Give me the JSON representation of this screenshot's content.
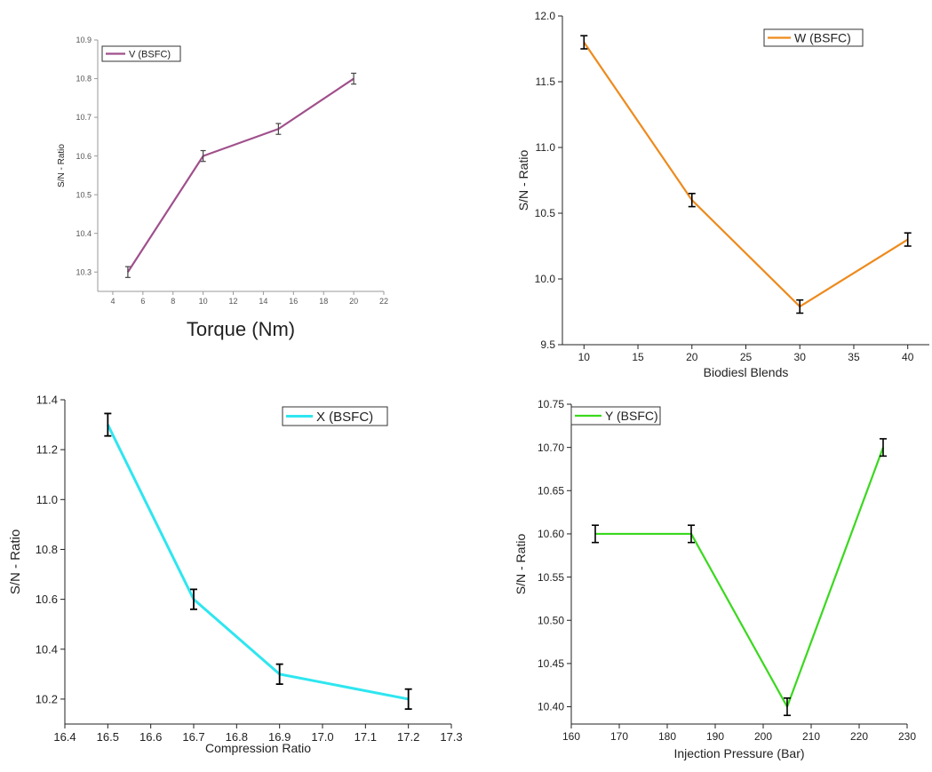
{
  "chart_data": [
    {
      "type": "line",
      "xlabel": "Torque (Nm)",
      "ylabel": "S/N - Ratio",
      "xlim": [
        3,
        22
      ],
      "ylim": [
        10.25,
        10.9
      ],
      "xticks": [
        4,
        6,
        8,
        10,
        12,
        14,
        16,
        18,
        20,
        22
      ],
      "yticks": [
        10.3,
        10.4,
        10.5,
        10.6,
        10.7,
        10.8,
        10.9
      ],
      "xtick_labels": [
        "4",
        "6",
        "8",
        "10",
        "12",
        "14",
        "16",
        "18",
        "20",
        "22"
      ],
      "ytick_labels": [
        "10.3",
        "10.4",
        "10.5",
        "10.6",
        "10.7",
        "10.8",
        "10.9"
      ],
      "legend": "top-left",
      "grid": false,
      "series": [
        {
          "name": "V (BSFC)",
          "color": "#a0508c",
          "x": [
            5,
            10,
            15,
            20
          ],
          "y": [
            10.3,
            10.6,
            10.67,
            10.8
          ],
          "err": [
            0.014,
            0.014,
            0.014,
            0.014
          ]
        }
      ]
    },
    {
      "type": "line",
      "xlabel": "Biodiesl Blends",
      "ylabel": "S/N - Ratio",
      "xlim": [
        8,
        42
      ],
      "ylim": [
        9.5,
        12.0
      ],
      "xticks": [
        10,
        15,
        20,
        25,
        30,
        35,
        40
      ],
      "yticks": [
        9.5,
        10.0,
        10.5,
        11.0,
        11.5,
        12.0
      ],
      "xtick_labels": [
        "10",
        "15",
        "20",
        "25",
        "30",
        "35",
        "40"
      ],
      "ytick_labels": [
        "9.5",
        "10.0",
        "10.5",
        "11.0",
        "11.5",
        "12.0"
      ],
      "legend": "top-right",
      "grid": false,
      "series": [
        {
          "name": "W (BSFC)",
          "color": "#ee8a1c",
          "x": [
            10,
            20,
            30,
            40
          ],
          "y": [
            11.8,
            10.6,
            9.79,
            10.3
          ],
          "err": [
            0.05,
            0.05,
            0.05,
            0.05
          ]
        }
      ]
    },
    {
      "type": "line",
      "xlabel": "Compression Ratio",
      "ylabel": "S/N - Ratio",
      "xlim": [
        16.4,
        17.3
      ],
      "ylim": [
        10.1,
        11.4
      ],
      "xticks": [
        16.4,
        16.5,
        16.6,
        16.7,
        16.8,
        16.9,
        17.0,
        17.1,
        17.2,
        17.3
      ],
      "yticks": [
        10.2,
        10.4,
        10.6,
        10.8,
        11.0,
        11.2,
        11.4
      ],
      "xtick_labels": [
        "16.4",
        "16.5",
        "16.6",
        "16.7",
        "16.8",
        "16.9",
        "17.0",
        "17.1",
        "17.2",
        "17.3"
      ],
      "ytick_labels": [
        "10.2",
        "10.4",
        "10.6",
        "10.8",
        "11.0",
        "11.2",
        "11.4"
      ],
      "legend": "top-right",
      "grid": false,
      "series": [
        {
          "name": "X (BSFC)",
          "color": "#2ee6f0",
          "x": [
            16.5,
            16.7,
            16.9,
            17.2
          ],
          "y": [
            11.3,
            10.6,
            10.3,
            10.2
          ],
          "err": [
            0.045,
            0.04,
            0.04,
            0.04
          ]
        }
      ]
    },
    {
      "type": "line",
      "xlabel": "Injection Pressure (Bar)",
      "ylabel": "S/N - Ratio",
      "xlim": [
        160,
        230
      ],
      "ylim": [
        10.38,
        10.75
      ],
      "xticks": [
        160,
        170,
        180,
        190,
        200,
        210,
        220,
        230
      ],
      "yticks": [
        10.4,
        10.45,
        10.5,
        10.55,
        10.6,
        10.65,
        10.7,
        10.75
      ],
      "xtick_labels": [
        "160",
        "170",
        "180",
        "190",
        "200",
        "210",
        "220",
        "230"
      ],
      "ytick_labels": [
        "10.40",
        "10.45",
        "10.50",
        "10.55",
        "10.60",
        "10.65",
        "10.70",
        "10.75"
      ],
      "legend": "top-left",
      "grid": false,
      "series": [
        {
          "name": "Y (BSFC)",
          "color": "#3ad81e",
          "x": [
            165,
            185,
            205,
            225
          ],
          "y": [
            10.6,
            10.6,
            10.4,
            10.7
          ],
          "err": [
            0.01,
            0.01,
            0.01,
            0.01
          ]
        }
      ]
    }
  ]
}
